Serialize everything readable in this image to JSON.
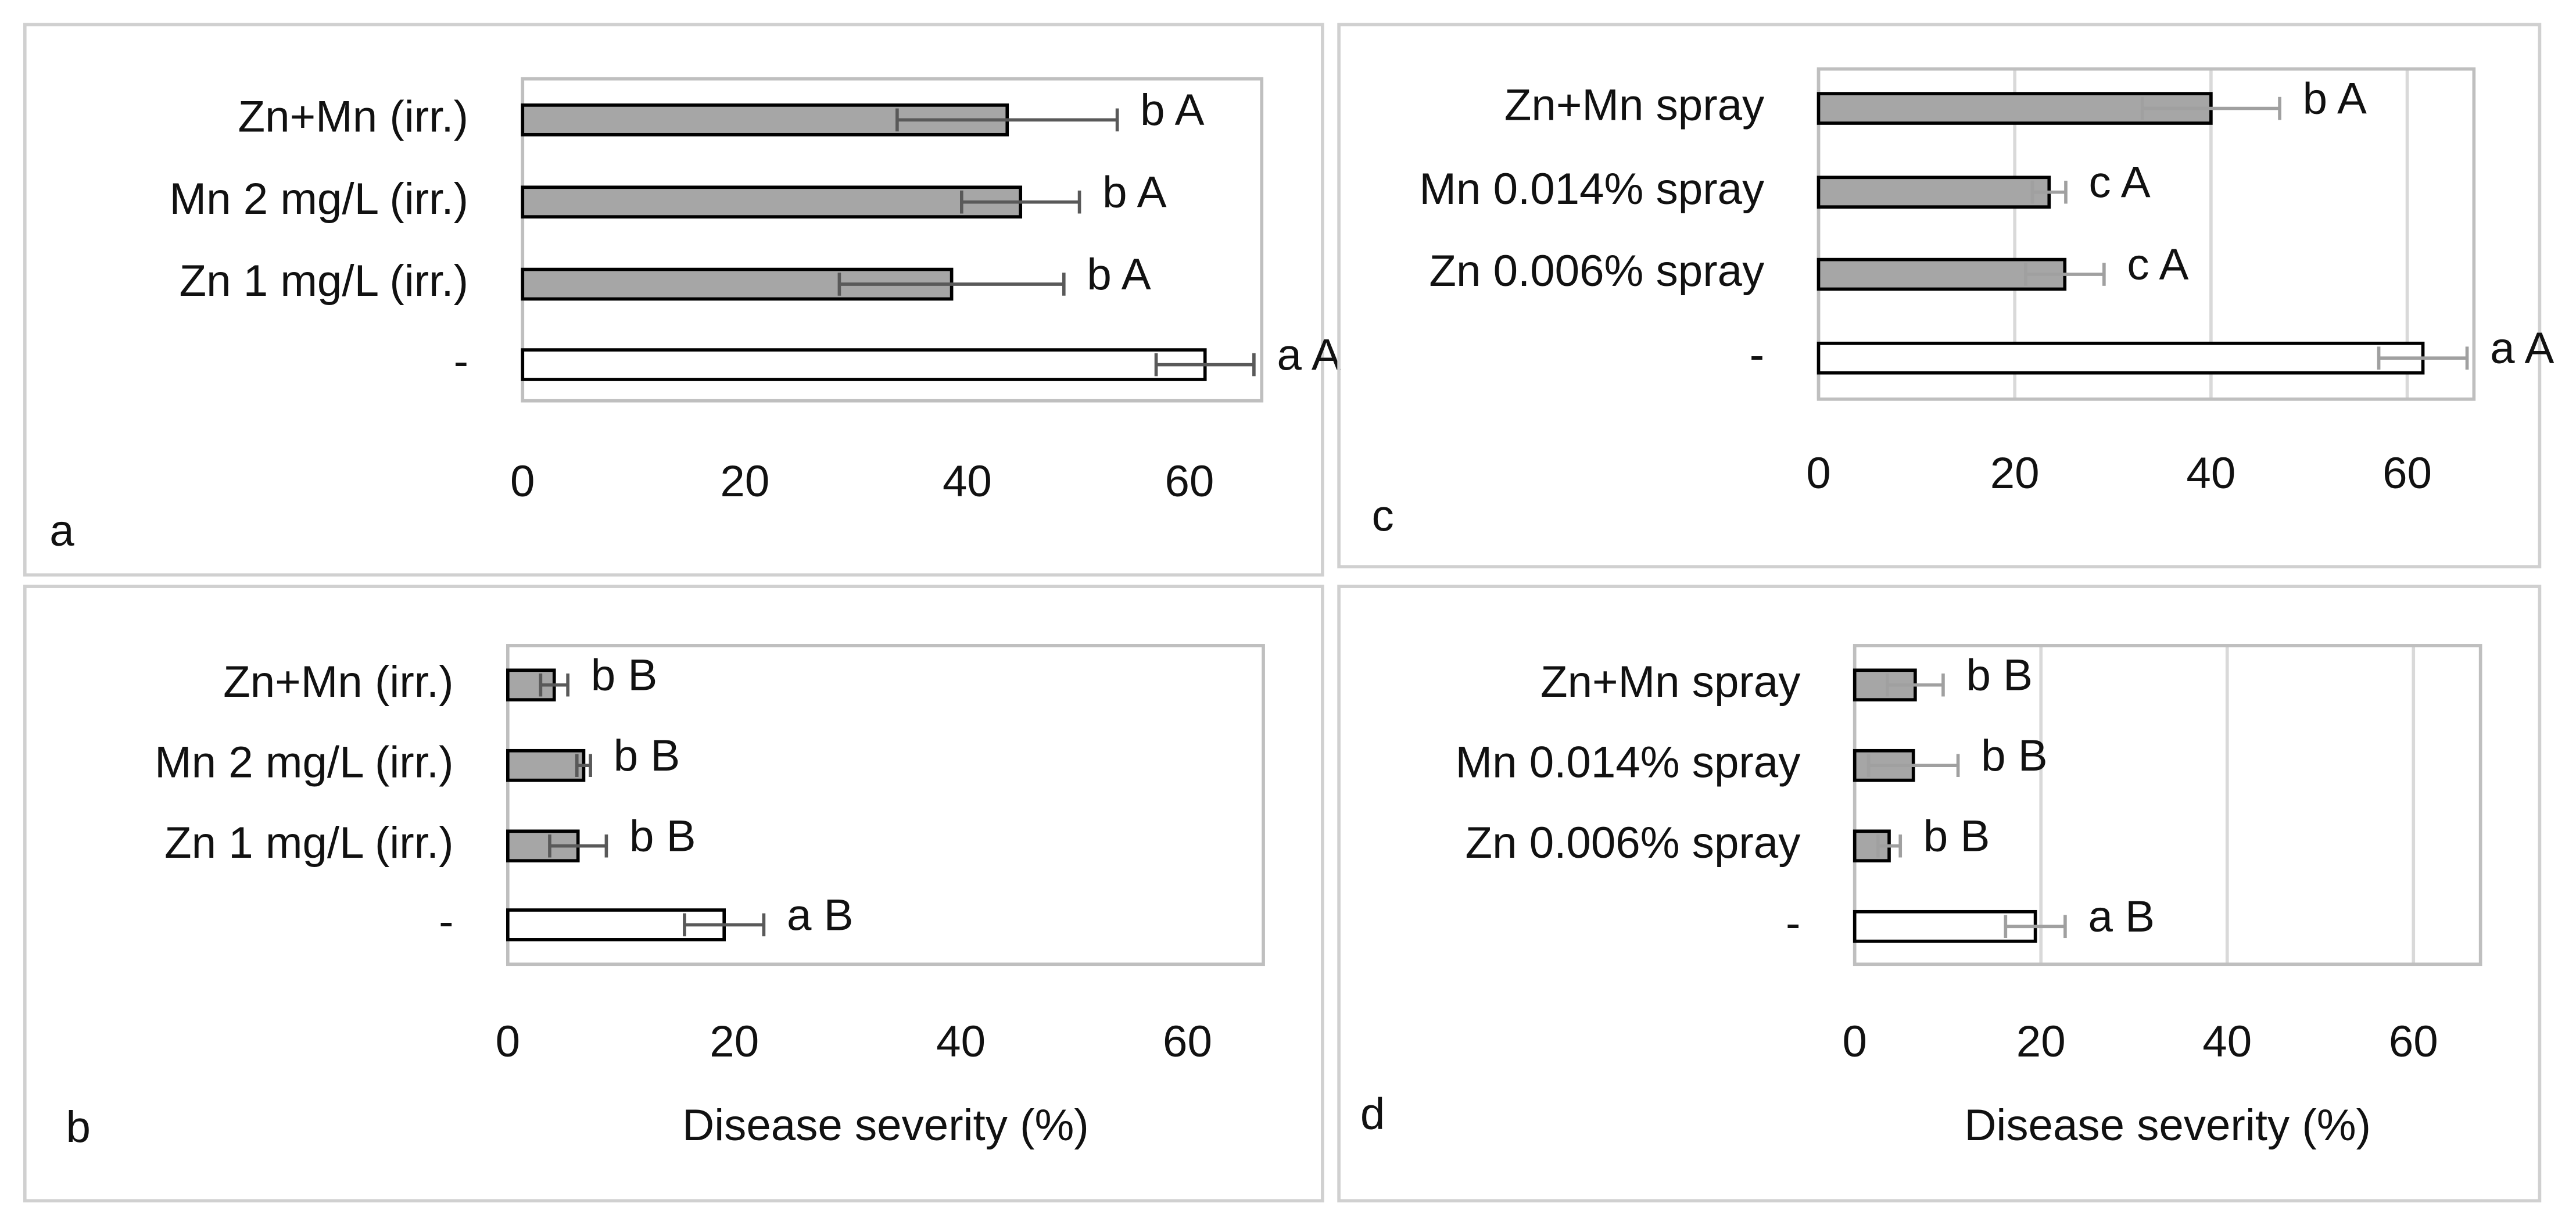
{
  "chart_data": [
    {
      "type": "bar",
      "orientation": "horizontal",
      "panel": "a",
      "categories": [
        "Zn+Mn (irr.)",
        "Mn 2 mg/L (irr.)",
        "Zn 1 mg/L (irr.)",
        "-"
      ],
      "values": [
        43.6,
        44.8,
        38.6,
        61.4
      ],
      "errors": [
        9.9,
        5.3,
        10.1,
        4.4
      ],
      "annotations": [
        "b A",
        "b A",
        "b A",
        "a A"
      ],
      "colors": [
        "#a6a6a6",
        "#a6a6a6",
        "#a6a6a6",
        "#ffffff"
      ],
      "error_color": "#595959",
      "xlim": [
        0,
        66.5
      ],
      "xticks": [
        0,
        20,
        40,
        60
      ],
      "grid": false
    },
    {
      "type": "bar",
      "orientation": "horizontal",
      "panel": "c",
      "categories": [
        "Zn+Mn spray",
        "Mn 0.014% spray",
        "Zn 0.006% spray",
        "-"
      ],
      "values": [
        40.0,
        23.5,
        25.1,
        61.6
      ],
      "errors": [
        7,
        1.7,
        4,
        4.5
      ],
      "annotations": [
        "b A",
        "c A",
        "c A",
        "a A"
      ],
      "colors": [
        "#a6a6a6",
        "#a6a6a6",
        "#a6a6a6",
        "#ffffff"
      ],
      "error_color": "#a0a0a0",
      "xlim": [
        0,
        66.8
      ],
      "xticks": [
        0,
        20,
        40,
        60
      ],
      "grid": true
    },
    {
      "type": "bar",
      "orientation": "horizontal",
      "panel": "b",
      "xlabel": "Disease severity (%)",
      "categories": [
        "Zn+Mn (irr.)",
        "Mn 2 mg/L (irr.)",
        "Zn 1 mg/L (irr.)",
        "-"
      ],
      "values": [
        4.1,
        6.7,
        6.2,
        19.1
      ],
      "errors": [
        1.2,
        0.6,
        2.5,
        3.5
      ],
      "annotations": [
        "b B",
        "b B",
        "b B",
        "a B"
      ],
      "colors": [
        "#a6a6a6",
        "#a6a6a6",
        "#a6a6a6",
        "#ffffff"
      ],
      "error_color": "#595959",
      "xlim": [
        0,
        66.7
      ],
      "xticks": [
        0,
        20,
        40,
        60
      ],
      "grid": false
    },
    {
      "type": "bar",
      "orientation": "horizontal",
      "panel": "d",
      "xlabel": "Disease severity (%)",
      "categories": [
        "Zn+Mn spray",
        "Mn 0.014% spray",
        "Zn 0.006% spray",
        "-"
      ],
      "values": [
        6.5,
        6.3,
        3.7,
        19.4
      ],
      "errors": [
        3,
        4.8,
        1.2,
        3.2
      ],
      "annotations": [
        "b B",
        "b B",
        "b B",
        "a B"
      ],
      "colors": [
        "#a6a6a6",
        "#a6a6a6",
        "#a6a6a6",
        "#ffffff"
      ],
      "error_color": "#a0a0a0",
      "xlim": [
        0,
        67.2
      ],
      "xticks": [
        0,
        20,
        40,
        60
      ],
      "grid": true
    }
  ]
}
